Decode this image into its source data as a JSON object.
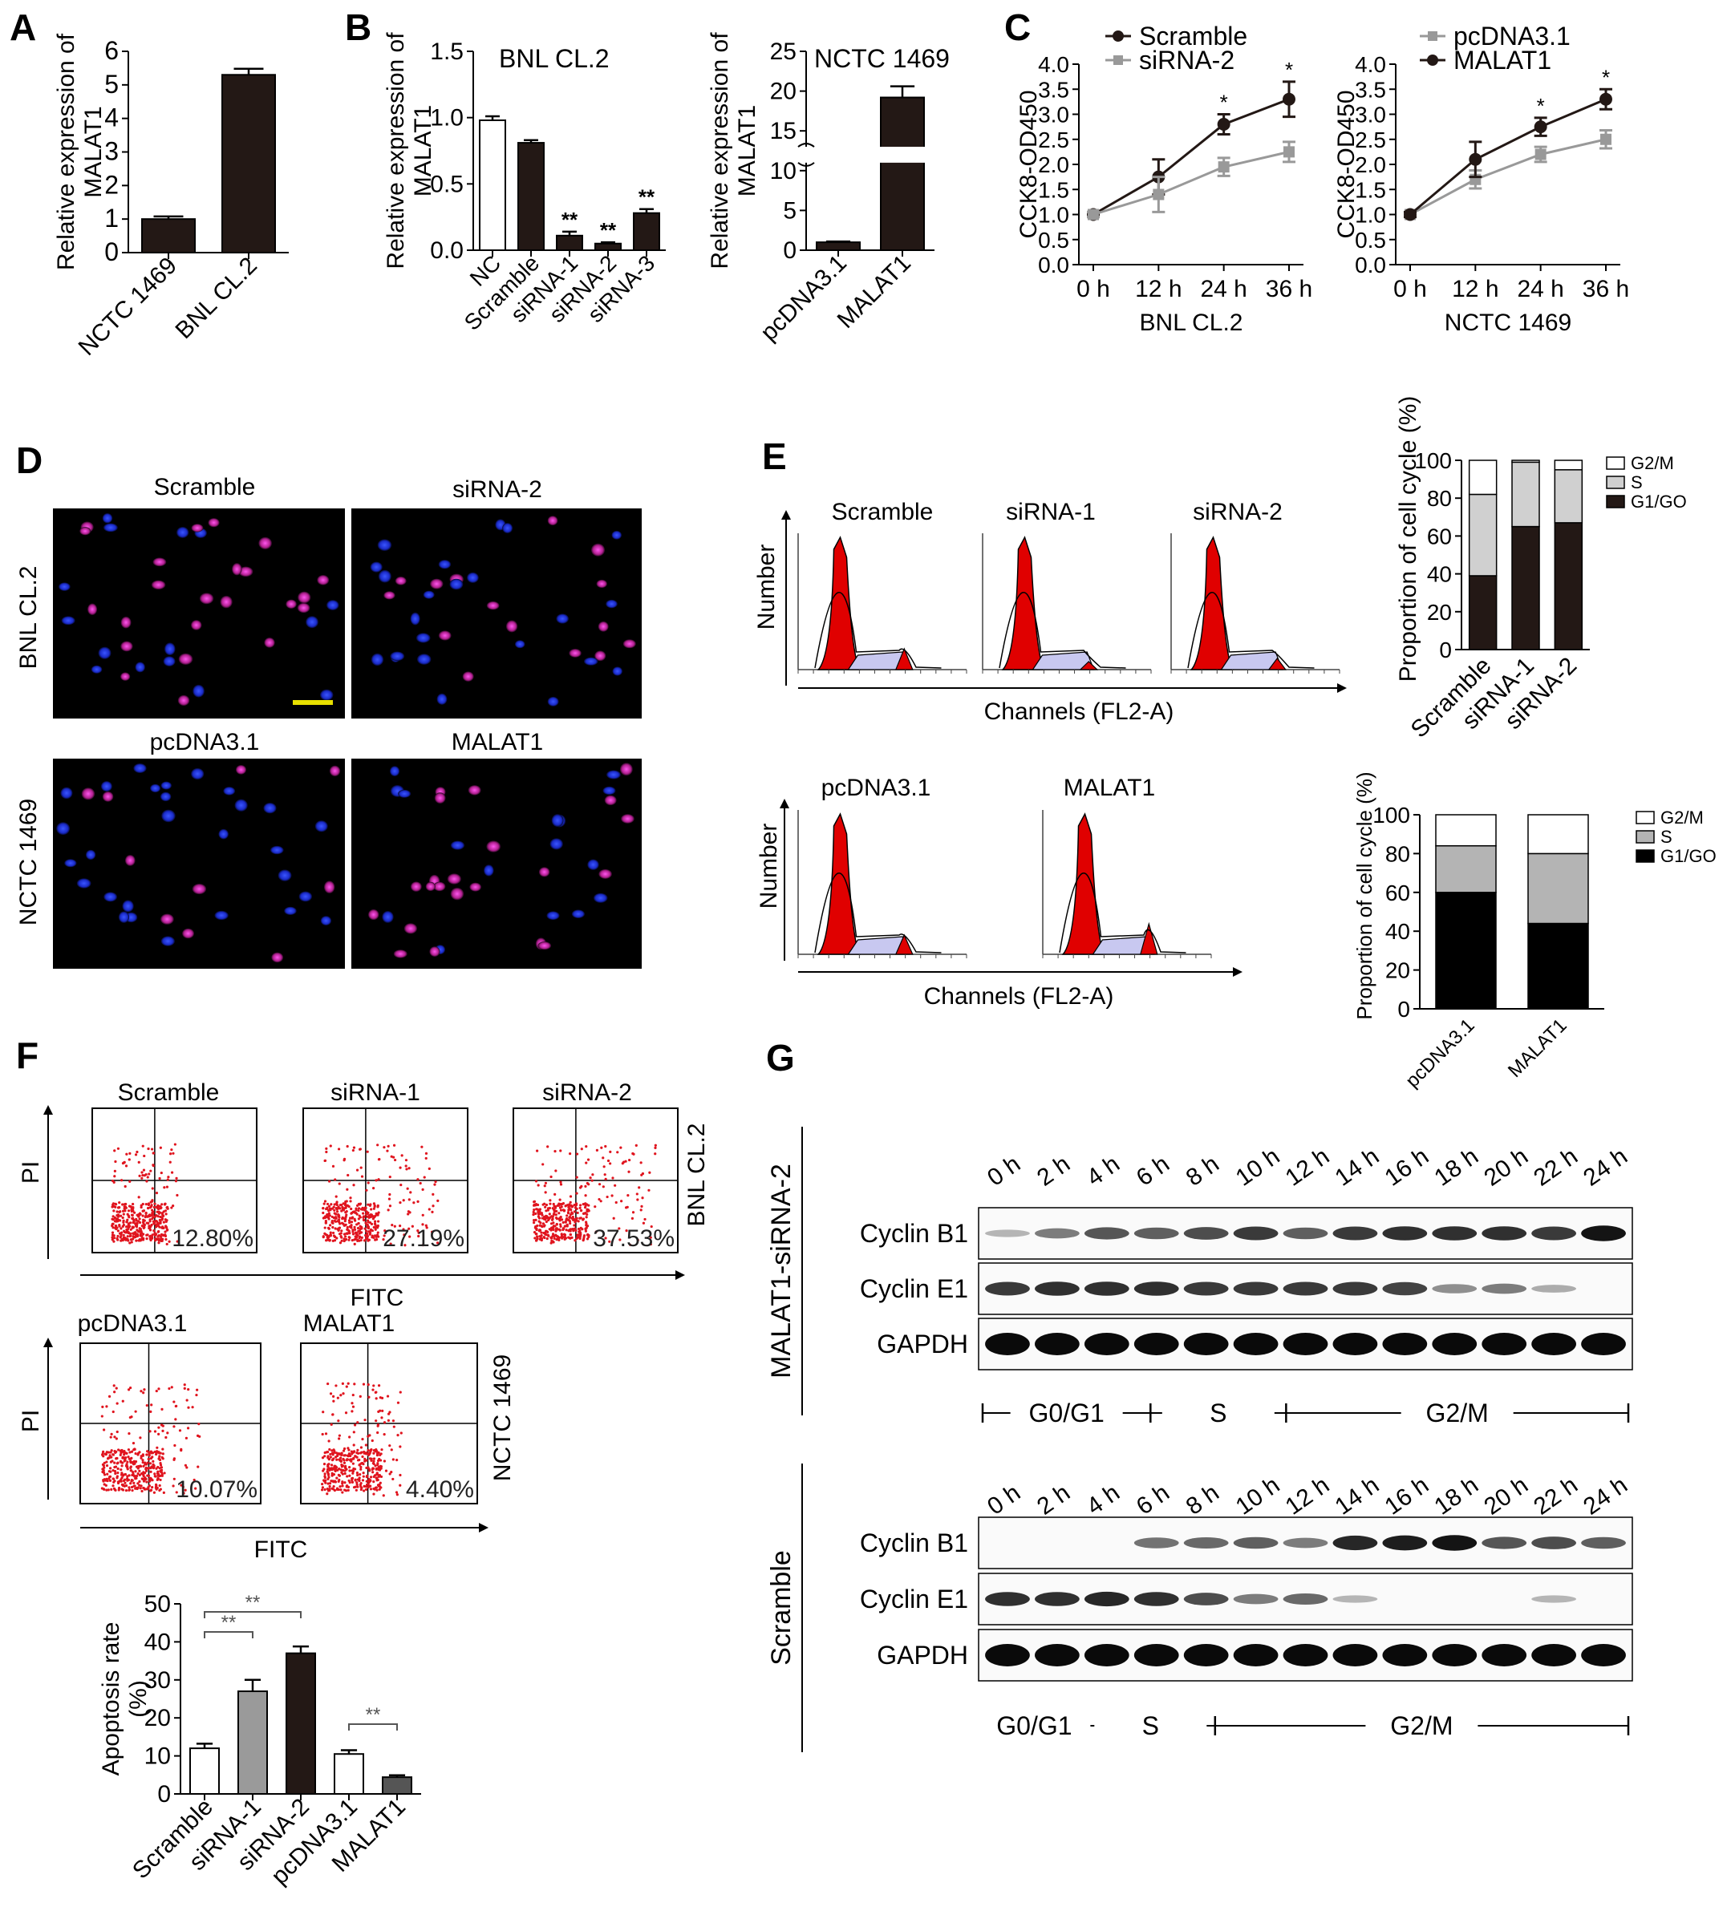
{
  "panel_letters": [
    "A",
    "B",
    "C",
    "D",
    "E",
    "F",
    "G"
  ],
  "chart_data": [
    {
      "panel": "A",
      "type": "bar",
      "ylabel": "Relative expression of MALAT1",
      "categories": [
        "NCTC 1469",
        "BNL CL.2"
      ],
      "values": [
        1.0,
        5.3
      ],
      "errors": [
        0.08,
        0.18
      ],
      "ylim": [
        0,
        6
      ],
      "yticks": [
        "0",
        "1",
        "2",
        "3",
        "4",
        "5",
        "6"
      ],
      "colors": [
        "#231815",
        "#231815"
      ]
    },
    {
      "panel": "B-knockdown",
      "type": "bar",
      "title": "BNL CL.2",
      "ylabel": "Relative expression of MALAT1",
      "categories": [
        "NC",
        "Scramble",
        "siRNA-1",
        "siRNA-2",
        "siRNA-3"
      ],
      "values": [
        0.98,
        0.81,
        0.11,
        0.05,
        0.28
      ],
      "errors": [
        0.03,
        0.02,
        0.03,
        0.01,
        0.03
      ],
      "annotations": [
        "",
        "",
        "**",
        "**",
        "**"
      ],
      "ylim": [
        0,
        1.5
      ],
      "yticks": [
        "0.0",
        "0.5",
        "1.0",
        "1.5"
      ],
      "colors": [
        "#ffffff",
        "#231815",
        "#231815",
        "#231815",
        "#231815"
      ]
    },
    {
      "panel": "B-overexpression",
      "type": "bar",
      "title": "NCTC 1469",
      "ylabel": "Relative expression of MALAT1",
      "categories": [
        "pcDNA3.1",
        "MALAT1"
      ],
      "values": [
        1.0,
        19.2
      ],
      "errors": [
        0.1,
        1.4
      ],
      "ylim": [
        0,
        25
      ],
      "yticks": [
        "0",
        "5",
        "10",
        "15",
        "20",
        "25"
      ],
      "colors": [
        "#231815",
        "#231815"
      ]
    },
    {
      "panel": "C-left",
      "type": "line",
      "ylabel": "CCK8-OD450",
      "xlabel": "BNL CL.2",
      "categories": [
        "0 h",
        "12 h",
        "24 h",
        "36 h"
      ],
      "series": [
        {
          "name": "Scramble",
          "values": [
            1.0,
            1.75,
            2.8,
            3.3
          ],
          "errors": [
            0.05,
            0.35,
            0.2,
            0.35
          ],
          "color": "#231815",
          "marker": "circle"
        },
        {
          "name": "siRNA-2",
          "values": [
            1.0,
            1.4,
            1.95,
            2.25
          ],
          "errors": [
            0.05,
            0.35,
            0.18,
            0.2
          ],
          "color": "#999999",
          "marker": "square"
        }
      ],
      "annotations": [
        "",
        "",
        "*",
        "*"
      ],
      "ylim": [
        0,
        4
      ],
      "yticks": [
        "0.0",
        "0.5",
        "1.0",
        "1.5",
        "2.0",
        "2.5",
        "3.0",
        "3.5",
        "4.0"
      ]
    },
    {
      "panel": "C-right",
      "type": "line",
      "ylabel": "CCK8-OD450",
      "xlabel": "NCTC 1469",
      "categories": [
        "0 h",
        "12 h",
        "24 h",
        "36 h"
      ],
      "series": [
        {
          "name": "pcDNA3.1",
          "values": [
            1.0,
            1.7,
            2.2,
            2.5
          ],
          "errors": [
            0.05,
            0.18,
            0.15,
            0.18
          ],
          "color": "#999999",
          "marker": "square"
        },
        {
          "name": "MALAT1",
          "values": [
            1.0,
            2.1,
            2.75,
            3.3
          ],
          "errors": [
            0.05,
            0.35,
            0.18,
            0.2
          ],
          "color": "#231815",
          "marker": "circle"
        }
      ],
      "annotations": [
        "",
        "",
        "*",
        "*"
      ],
      "ylim": [
        0,
        4
      ],
      "yticks": [
        "0.0",
        "0.5",
        "1.0",
        "1.5",
        "2.0",
        "2.5",
        "3.0",
        "3.5",
        "4.0"
      ]
    },
    {
      "panel": "E-top",
      "type": "bar",
      "stacked": true,
      "ylabel": "Proportion of cell cycle (%)",
      "categories": [
        "Scramble",
        "siRNA-1",
        "siRNA-2"
      ],
      "series": [
        {
          "name": "G1/GO",
          "values": [
            39,
            65,
            67
          ],
          "color": "#231815"
        },
        {
          "name": "S",
          "values": [
            43,
            34,
            28
          ],
          "color": "#d0d0d0"
        },
        {
          "name": "G2/M",
          "values": [
            18,
            1,
            5
          ],
          "color": "#ffffff"
        }
      ],
      "ylim": [
        0,
        100
      ],
      "yticks": [
        "0",
        "20",
        "40",
        "60",
        "80",
        "100"
      ]
    },
    {
      "panel": "E-bottom",
      "type": "bar",
      "stacked": true,
      "ylabel": "Proportion of cell cycle (%)",
      "categories": [
        "pcDNA3.1",
        "MALAT1"
      ],
      "series": [
        {
          "name": "G1/GO",
          "values": [
            60,
            44
          ],
          "color": "#000000"
        },
        {
          "name": "S",
          "values": [
            24,
            36
          ],
          "color": "#b4b4b4"
        },
        {
          "name": "G2/M",
          "values": [
            16,
            20
          ],
          "color": "#ffffff"
        }
      ],
      "ylim": [
        0,
        100
      ],
      "yticks": [
        "0",
        "20",
        "40",
        "60",
        "80",
        "100"
      ]
    },
    {
      "panel": "F-bar",
      "type": "bar",
      "ylabel": "Apoptosis rate (%)",
      "categories": [
        "Scramble",
        "siRNA-1",
        "siRNA-2",
        "pcDNA3.1",
        "MALAT1"
      ],
      "values": [
        12,
        27,
        37,
        10.5,
        4.4
      ],
      "errors": [
        1.2,
        3,
        1.8,
        1,
        0.5
      ],
      "colors": [
        "#ffffff",
        "#9a9a9a",
        "#231815",
        "#ffffff",
        "#555555"
      ],
      "significance": [
        {
          "from": 0,
          "to": 1,
          "label": "**"
        },
        {
          "from": 0,
          "to": 2,
          "label": "**"
        },
        {
          "from": 3,
          "to": 4,
          "label": "**"
        }
      ],
      "ylim": [
        0,
        50
      ],
      "yticks": [
        "0",
        "10",
        "20",
        "30",
        "40",
        "50"
      ]
    }
  ],
  "panel_D": {
    "top_labels": [
      "Scramble",
      "siRNA-2"
    ],
    "bottom_labels": [
      "pcDNA3.1",
      "MALAT1"
    ],
    "row_labels": [
      "BNL CL.2",
      "NCTC 1469"
    ]
  },
  "panel_E_histograms": {
    "top_titles": [
      "Scramble",
      "siRNA-1",
      "siRNA-2"
    ],
    "bottom_titles": [
      "pcDNA3.1",
      "MALAT1"
    ],
    "ylabel": "Number",
    "xlabel": "Channels (FL2-A)"
  },
  "panel_F_flow": {
    "top": [
      {
        "title": "Scramble",
        "percent": "12.80%"
      },
      {
        "title": "siRNA-1",
        "percent": "27.19%"
      },
      {
        "title": "siRNA-2",
        "percent": "37.53%"
      }
    ],
    "bottom": [
      {
        "title": "pcDNA3.1",
        "percent": "10.07%"
      },
      {
        "title": "MALAT1",
        "percent": "4.40%"
      }
    ],
    "ylabel": "PI",
    "xlabel": "FITC",
    "row_labels": [
      "BNL CL.2",
      "NCTC 1469"
    ]
  },
  "panel_G": {
    "timepoints": [
      "0 h",
      "2 h",
      "4 h",
      "6 h",
      "8 h",
      "10 h",
      "12 h",
      "14 h",
      "16 h",
      "18 h",
      "20 h",
      "22 h",
      "24 h"
    ],
    "blots": [
      {
        "group": "MALAT1-siRNA-2",
        "rows": [
          {
            "label": "Cyclin B1",
            "intensity": [
              0.1,
              0.4,
              0.6,
              0.55,
              0.65,
              0.75,
              0.55,
              0.75,
              0.8,
              0.8,
              0.8,
              0.75,
              0.95
            ]
          },
          {
            "label": "Cyclin E1",
            "intensity": [
              0.75,
              0.8,
              0.8,
              0.8,
              0.75,
              0.75,
              0.75,
              0.75,
              0.7,
              0.3,
              0.4,
              0.15,
              0
            ]
          },
          {
            "label": "GAPDH",
            "intensity": [
              1,
              1,
              1,
              1,
              1,
              1,
              1,
              1,
              1,
              1,
              1,
              1,
              1
            ]
          }
        ],
        "phases": [
          "G0/G1",
          "S",
          "G2/M"
        ]
      },
      {
        "group": "Scramble",
        "rows": [
          {
            "label": "Cyclin B1",
            "intensity": [
              0,
              0,
              0,
              0.45,
              0.5,
              0.55,
              0.4,
              0.85,
              0.9,
              0.95,
              0.6,
              0.65,
              0.55
            ]
          },
          {
            "label": "Cyclin E1",
            "intensity": [
              0.8,
              0.8,
              0.85,
              0.8,
              0.65,
              0.4,
              0.5,
              0.1,
              0,
              0,
              0,
              0.1,
              0
            ]
          },
          {
            "label": "GAPDH",
            "intensity": [
              1,
              1,
              1,
              1,
              1,
              1,
              1,
              1,
              1,
              1,
              1,
              1,
              1
            ]
          }
        ],
        "phases": [
          "G0/G1",
          "S",
          "G2/M"
        ]
      }
    ]
  },
  "scale_bar_color": "#e8e000"
}
